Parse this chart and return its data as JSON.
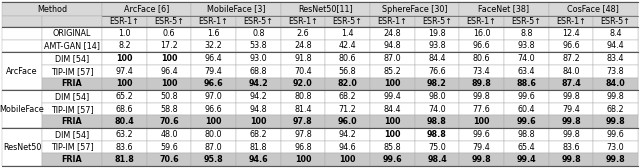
{
  "col_groups": [
    "ArcFace [6]",
    "MobileFace [3]",
    "ResNet50[11]",
    "SphereFace [30]",
    "FaceNet [38]",
    "CosFace [48]"
  ],
  "sub_cols": [
    "ESR-1↑",
    "ESR-5↑",
    "ESR-1↑",
    "ESR-5↑",
    "ESR-1↑",
    "ESR-5↑",
    "ESR-1↑",
    "ESR-5↑",
    "ESR-1↑",
    "ESR-5↑",
    "ESR-1↑",
    "ESR-5↑"
  ],
  "row_group_labels": [
    "",
    "",
    "ArcFace",
    "",
    "",
    "MobileFace",
    "",
    "",
    "ResNet50",
    "",
    ""
  ],
  "row_labels": [
    "ORIGINAL",
    "AMT-GAN [14]",
    "DIM [54]",
    "TIP-IM [57]",
    "FRIA",
    "DIM [54]",
    "TIP-IM [57]",
    "FRIA",
    "DIM [54]",
    "TIP-IM [57]",
    "FRIA"
  ],
  "data": [
    [
      "1.0",
      "0.6",
      "1.6",
      "0.8",
      "2.6",
      "1.4",
      "24.8",
      "19.8",
      "16.0",
      "8.8",
      "12.4",
      "8.4"
    ],
    [
      "8.2",
      "17.2",
      "32.2",
      "53.8",
      "24.8",
      "42.4",
      "94.8",
      "93.8",
      "96.6",
      "93.8",
      "96.6",
      "94.4"
    ],
    [
      "100",
      "100",
      "96.4",
      "93.0",
      "91.8",
      "80.6",
      "87.0",
      "84.4",
      "80.6",
      "74.0",
      "87.2",
      "83.4"
    ],
    [
      "97.4",
      "96.4",
      "79.4",
      "68.8",
      "70.4",
      "56.8",
      "85.2",
      "76.6",
      "73.4",
      "63.4",
      "84.0",
      "73.8"
    ],
    [
      "100",
      "100",
      "96.6",
      "94.2",
      "92.0",
      "82.0",
      "100",
      "98.2",
      "89.8",
      "88.6",
      "87.4",
      "84.0"
    ],
    [
      "65.2",
      "50.8",
      "97.0",
      "94.2",
      "80.8",
      "68.2",
      "99.4",
      "98.0",
      "99.8",
      "99.6",
      "99.8",
      "99.8"
    ],
    [
      "68.6",
      "58.8",
      "96.6",
      "94.8",
      "81.4",
      "71.2",
      "84.4",
      "74.0",
      "77.6",
      "60.4",
      "79.4",
      "68.2"
    ],
    [
      "80.4",
      "70.6",
      "100",
      "100",
      "97.8",
      "96.0",
      "100",
      "98.8",
      "100",
      "99.6",
      "99.8",
      "99.8"
    ],
    [
      "63.2",
      "48.0",
      "80.0",
      "68.2",
      "97.8",
      "94.2",
      "100",
      "98.8",
      "99.6",
      "98.8",
      "99.8",
      "99.6"
    ],
    [
      "83.6",
      "59.6",
      "87.0",
      "81.8",
      "96.8",
      "94.6",
      "85.8",
      "75.0",
      "79.4",
      "65.4",
      "83.6",
      "73.0"
    ],
    [
      "81.8",
      "70.6",
      "95.8",
      "94.6",
      "100",
      "100",
      "99.6",
      "98.4",
      "99.8",
      "99.4",
      "99.8",
      "99.8"
    ]
  ],
  "bold_data": [
    [
      false,
      false,
      false,
      false,
      false,
      false,
      false,
      false,
      false,
      false,
      false,
      false
    ],
    [
      false,
      false,
      false,
      false,
      false,
      false,
      false,
      false,
      false,
      false,
      false,
      false
    ],
    [
      true,
      true,
      false,
      false,
      false,
      false,
      false,
      false,
      false,
      false,
      false,
      false
    ],
    [
      false,
      false,
      false,
      false,
      false,
      false,
      false,
      false,
      false,
      false,
      false,
      false
    ],
    [
      true,
      true,
      false,
      false,
      false,
      false,
      true,
      true,
      false,
      false,
      false,
      false
    ],
    [
      false,
      false,
      false,
      false,
      false,
      false,
      false,
      false,
      false,
      false,
      false,
      false
    ],
    [
      false,
      false,
      false,
      false,
      false,
      false,
      false,
      false,
      false,
      false,
      false,
      false
    ],
    [
      false,
      false,
      true,
      true,
      false,
      false,
      true,
      true,
      true,
      false,
      false,
      false
    ],
    [
      false,
      false,
      false,
      false,
      false,
      false,
      true,
      true,
      false,
      false,
      false,
      false
    ],
    [
      false,
      false,
      false,
      false,
      false,
      false,
      false,
      false,
      false,
      false,
      false,
      false
    ],
    [
      false,
      false,
      false,
      false,
      true,
      true,
      false,
      false,
      true,
      true,
      false,
      false
    ]
  ],
  "fria_rows": [
    4,
    7,
    10
  ],
  "header_bg": "#d8d8d8",
  "fria_bg": "#c8c8c8",
  "white_bg": "#ffffff",
  "light_bg": "#f0f0f0",
  "border_color": "#aaaaaa",
  "font_size": 5.8,
  "header_font_size": 5.8
}
